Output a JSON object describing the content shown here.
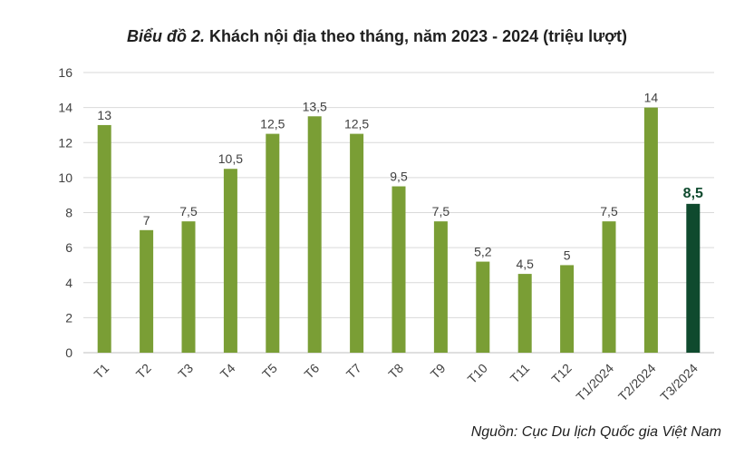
{
  "chart_data": {
    "type": "bar",
    "title_prefix": "Biểu đồ 2.",
    "title_main": "Khách nội địa theo tháng, năm 2023 - 2024 (triệu lượt)",
    "source": "Nguồn: Cục Du lịch Quốc gia Việt Nam",
    "categories": [
      "T1",
      "T2",
      "T3",
      "T4",
      "T5",
      "T6",
      "T7",
      "T8",
      "T9",
      "T10",
      "T11",
      "T12",
      "T1/2024",
      "T2/2024",
      "T3/2024"
    ],
    "values": [
      13,
      7,
      7.5,
      10.5,
      12.5,
      13.5,
      12.5,
      9.5,
      7.5,
      5.2,
      4.5,
      5,
      7.5,
      14,
      8.5
    ],
    "value_labels": [
      "13",
      "7",
      "7,5",
      "10,5",
      "12,5",
      "13,5",
      "12,5",
      "9,5",
      "7,5",
      "5,2",
      "4,5",
      "5",
      "7,5",
      "14",
      "8,5"
    ],
    "highlight_index": 14,
    "ylim": [
      0,
      16
    ],
    "yticks": [
      0,
      2,
      4,
      6,
      8,
      10,
      12,
      14,
      16
    ],
    "grid": true,
    "xlabel": "",
    "ylabel": "",
    "colors": {
      "bar": "#7a9e35",
      "highlight_bar": "#0f4a2e",
      "grid": "#d9d9d9",
      "axis": "#bfbfbf",
      "text": "#404040",
      "highlight_text": "#0f4a2e"
    }
  }
}
